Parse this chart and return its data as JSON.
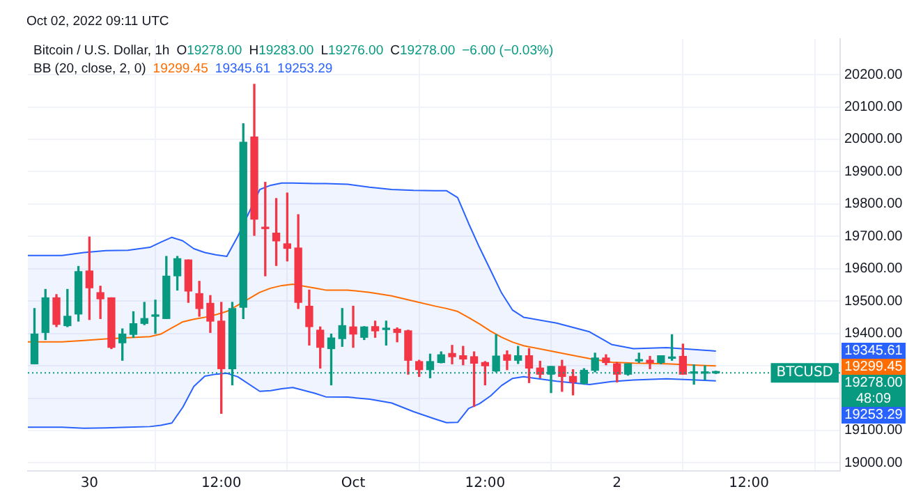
{
  "chart_data": {
    "type": "candlestick",
    "title": "Bitcoin / U.S. Dollar, 1h",
    "subtitle": "BB (20, close, 2, 0)",
    "x": [
      "2022-09-29T19:00",
      "2022-09-29T20:00",
      "2022-09-29T21:00",
      "2022-09-29T22:00",
      "2022-09-29T23:00",
      "2022-09-30T00:00",
      "2022-09-30T01:00",
      "2022-09-30T02:00",
      "2022-09-30T03:00",
      "2022-09-30T04:00",
      "2022-09-30T05:00",
      "2022-09-30T06:00",
      "2022-09-30T07:00",
      "2022-09-30T08:00",
      "2022-09-30T09:00",
      "2022-09-30T10:00",
      "2022-09-30T11:00",
      "2022-09-30T12:00",
      "2022-09-30T13:00",
      "2022-09-30T14:00",
      "2022-09-30T15:00",
      "2022-09-30T16:00",
      "2022-09-30T17:00",
      "2022-09-30T18:00",
      "2022-09-30T19:00",
      "2022-09-30T20:00",
      "2022-09-30T21:00",
      "2022-09-30T22:00",
      "2022-09-30T23:00",
      "2022-10-01T00:00",
      "2022-10-01T01:00",
      "2022-10-01T02:00",
      "2022-10-01T03:00",
      "2022-10-01T04:00",
      "2022-10-01T05:00",
      "2022-10-01T06:00",
      "2022-10-01T07:00",
      "2022-10-01T08:00",
      "2022-10-01T09:00",
      "2022-10-01T10:00",
      "2022-10-01T11:00",
      "2022-10-01T12:00",
      "2022-10-01T13:00",
      "2022-10-01T14:00",
      "2022-10-01T15:00",
      "2022-10-01T16:00",
      "2022-10-01T17:00",
      "2022-10-01T18:00",
      "2022-10-01T19:00",
      "2022-10-01T20:00",
      "2022-10-01T21:00",
      "2022-10-01T22:00",
      "2022-10-01T23:00",
      "2022-10-02T00:00",
      "2022-10-02T01:00",
      "2022-10-02T02:00",
      "2022-10-02T03:00",
      "2022-10-02T04:00",
      "2022-10-02T05:00",
      "2022-10-02T06:00",
      "2022-10-02T07:00",
      "2022-10-02T08:00",
      "2022-10-02T09:00"
    ],
    "ohlc": [
      [
        19306,
        19477,
        19306,
        19398
      ],
      [
        19403,
        19536,
        19381,
        19510
      ],
      [
        19510,
        19520,
        19421,
        19428
      ],
      [
        19424,
        19536,
        19421,
        19453
      ],
      [
        19460,
        19607,
        19438,
        19591
      ],
      [
        19593,
        19698,
        19443,
        19541
      ],
      [
        19526,
        19546,
        19446,
        19507
      ],
      [
        19510,
        19510,
        19353,
        19357
      ],
      [
        19371,
        19414,
        19317,
        19398
      ],
      [
        19397,
        19467,
        19388,
        19430
      ],
      [
        19431,
        19496,
        19427,
        19446
      ],
      [
        19453,
        19503,
        19400,
        19454
      ],
      [
        19446,
        19638,
        19446,
        19577
      ],
      [
        19578,
        19638,
        19534,
        19631
      ],
      [
        19627,
        19627,
        19496,
        19531
      ],
      [
        19523,
        19561,
        19453,
        19477
      ],
      [
        19493,
        19517,
        19403,
        19438
      ],
      [
        19438,
        19496,
        19153,
        19291
      ],
      [
        19291,
        19496,
        19241,
        19477
      ],
      [
        19481,
        20048,
        19446,
        19991
      ],
      [
        20007,
        20170,
        19703,
        19753
      ],
      [
        19728,
        19867,
        19578,
        19724
      ],
      [
        19710,
        19817,
        19610,
        19686
      ],
      [
        19677,
        19834,
        19624,
        19663
      ],
      [
        19664,
        19767,
        19477,
        19496
      ],
      [
        19484,
        19534,
        19364,
        19421
      ],
      [
        19410,
        19420,
        19293,
        19357
      ],
      [
        19353,
        19398,
        19241,
        19386
      ],
      [
        19384,
        19477,
        19360,
        19424
      ],
      [
        19420,
        19484,
        19357,
        19398
      ],
      [
        19388,
        19421,
        19381,
        19420
      ],
      [
        19421,
        19438,
        19388,
        19408
      ],
      [
        19412,
        19438,
        19364,
        19414
      ],
      [
        19413,
        19417,
        19374,
        19403
      ],
      [
        19408,
        19410,
        19274,
        19317
      ],
      [
        19313,
        19317,
        19267,
        19288
      ],
      [
        19288,
        19336,
        19263,
        19313
      ],
      [
        19310,
        19343,
        19309,
        19334
      ],
      [
        19338,
        19363,
        19306,
        19328
      ],
      [
        19331,
        19360,
        19303,
        19321
      ],
      [
        19328,
        19343,
        19174,
        19308
      ],
      [
        19310,
        19313,
        19241,
        19300
      ],
      [
        19284,
        19396,
        19281,
        19330
      ],
      [
        19334,
        19346,
        19288,
        19317
      ],
      [
        19317,
        19360,
        19307,
        19331
      ],
      [
        19331,
        19353,
        19248,
        19293
      ],
      [
        19293,
        19314,
        19263,
        19274
      ],
      [
        19274,
        19298,
        19217,
        19298
      ],
      [
        19298,
        19317,
        19221,
        19267
      ],
      [
        19267,
        19288,
        19210,
        19250
      ],
      [
        19246,
        19291,
        19243,
        19286
      ],
      [
        19286,
        19339,
        19281,
        19324
      ],
      [
        19324,
        19334,
        19303,
        19310
      ],
      [
        19306,
        19310,
        19250,
        19274
      ],
      [
        19274,
        19306,
        19271,
        19306
      ],
      [
        19315,
        19339,
        19310,
        19317
      ],
      [
        19317,
        19329,
        19291,
        19310
      ],
      [
        19310,
        19331,
        19306,
        19331
      ],
      [
        19323,
        19396,
        19317,
        19327
      ],
      [
        19329,
        19367,
        19274,
        19274
      ],
      [
        19277,
        19303,
        19243,
        19281
      ],
      [
        19277,
        19300,
        19257,
        19281
      ],
      [
        19278,
        19283,
        19276,
        19278
      ]
    ],
    "series": [
      {
        "type": "line",
        "color": "#2962ff",
        "x": [
          "2022-09-29T18:24",
          "2022-09-29T21:30",
          "2022-09-29T23:30",
          "2022-09-30T01:30",
          "2022-09-30T03:30",
          "2022-09-30T05:30",
          "2022-09-30T06:30",
          "2022-09-30T07:30",
          "2022-09-30T08:30",
          "2022-09-30T09:30",
          "2022-09-30T10:30",
          "2022-09-30T11:30",
          "2022-09-30T12:30",
          "2022-09-30T13:30",
          "2022-09-30T15:30",
          "2022-09-30T16:30",
          "2022-09-30T17:30",
          "2022-09-30T18:30",
          "2022-09-30T20:30",
          "2022-09-30T21:30",
          "2022-09-30T23:30",
          "2022-10-01T01:30",
          "2022-10-01T03:30",
          "2022-10-01T05:30",
          "2022-10-01T07:30",
          "2022-10-01T08:30",
          "2022-10-01T09:30",
          "2022-10-01T10:30",
          "2022-10-01T11:30",
          "2022-10-01T12:30",
          "2022-10-01T13:30",
          "2022-10-01T14:30",
          "2022-10-01T15:30",
          "2022-10-01T18:30",
          "2022-10-01T21:30",
          "2022-10-01T23:30",
          "2022-10-02T01:30",
          "2022-10-02T04:30",
          "2022-10-02T09:00"
        ],
        "values": [
          19641,
          19641,
          19650,
          19656,
          19657,
          19666,
          19682,
          19697,
          19686,
          19662,
          19650,
          19643,
          19638,
          19700,
          19845,
          19858,
          19865,
          19865,
          19863,
          19863,
          19861,
          19852,
          19845,
          19842,
          19841,
          19841,
          19820,
          19740,
          19665,
          19595,
          19525,
          19472,
          19450,
          19432,
          19405,
          19366,
          19353,
          19356,
          19345.61
        ]
      },
      {
        "type": "line",
        "color": "#ff6d00",
        "x": [
          "2022-09-29T18:24",
          "2022-09-29T21:30",
          "2022-09-29T23:30",
          "2022-09-30T01:30",
          "2022-09-30T03:30",
          "2022-09-30T05:30",
          "2022-09-30T06:30",
          "2022-09-30T07:30",
          "2022-09-30T08:30",
          "2022-09-30T09:30",
          "2022-09-30T10:30",
          "2022-09-30T11:30",
          "2022-09-30T12:30",
          "2022-09-30T13:30",
          "2022-09-30T15:30",
          "2022-09-30T16:30",
          "2022-09-30T17:30",
          "2022-09-30T18:30",
          "2022-09-30T20:30",
          "2022-09-30T21:30",
          "2022-09-30T23:30",
          "2022-10-01T01:30",
          "2022-10-01T03:30",
          "2022-10-01T05:30",
          "2022-10-01T07:30",
          "2022-10-01T08:30",
          "2022-10-01T09:30",
          "2022-10-01T10:30",
          "2022-10-01T11:30",
          "2022-10-01T12:30",
          "2022-10-01T13:30",
          "2022-10-01T14:30",
          "2022-10-01T15:30",
          "2022-10-01T18:30",
          "2022-10-01T21:30",
          "2022-10-01T23:30",
          "2022-10-02T01:30",
          "2022-10-02T04:30",
          "2022-10-02T09:00"
        ],
        "values": [
          19374,
          19374,
          19378,
          19383,
          19387,
          19390,
          19398,
          19417,
          19436,
          19444,
          19450,
          19458,
          19468,
          19487,
          19527,
          19540,
          19548,
          19552,
          19540,
          19534,
          19534,
          19527,
          19516,
          19500,
          19484,
          19477,
          19468,
          19449,
          19429,
          19407,
          19388,
          19373,
          19362,
          19342,
          19322,
          19311,
          19308,
          19306,
          19299.45
        ],
        "upper": [
          19641,
          19641,
          19650,
          19656,
          19657,
          19666,
          19682,
          19697,
          19686,
          19662,
          19650,
          19643,
          19638,
          19700,
          19845,
          19858,
          19865,
          19865,
          19863,
          19863,
          19861,
          19852,
          19845,
          19842,
          19841,
          19841,
          19820,
          19740,
          19665,
          19595,
          19525,
          19472,
          19450,
          19432,
          19405,
          19366,
          19353,
          19356,
          19345.61
        ],
        "lower": [
          19110,
          19110,
          19107,
          19108,
          19110,
          19112,
          19116,
          19123,
          19172,
          19236,
          19268,
          19274,
          19277,
          19266,
          19221,
          19223,
          19229,
          19233,
          19215,
          19204,
          19203,
          19197,
          19185,
          19158,
          19135,
          19124,
          19125,
          19168,
          19183,
          19207,
          19239,
          19261,
          19266,
          19252,
          19242,
          19251,
          19256,
          19260,
          19253.29
        ]
      },
      {
        "type": "line",
        "color": "#2962ff",
        "x": [
          "2022-09-29T18:24",
          "2022-09-29T21:30",
          "2022-09-29T23:30",
          "2022-09-30T01:30",
          "2022-09-30T03:30",
          "2022-09-30T05:30",
          "2022-09-30T06:30",
          "2022-09-30T07:30",
          "2022-09-30T08:30",
          "2022-09-30T09:30",
          "2022-09-30T10:30",
          "2022-09-30T11:30",
          "2022-09-30T12:30",
          "2022-09-30T13:30",
          "2022-09-30T15:30",
          "2022-09-30T16:30",
          "2022-09-30T17:30",
          "2022-09-30T18:30",
          "2022-09-30T20:30",
          "2022-09-30T21:30",
          "2022-09-30T23:30",
          "2022-10-01T01:30",
          "2022-10-01T03:30",
          "2022-10-01T05:30",
          "2022-10-01T07:30",
          "2022-10-01T08:30",
          "2022-10-01T09:30",
          "2022-10-01T10:30",
          "2022-10-01T11:30",
          "2022-10-01T12:30",
          "2022-10-01T13:30",
          "2022-10-01T14:30",
          "2022-10-01T15:30",
          "2022-10-01T18:30",
          "2022-10-01T21:30",
          "2022-10-01T23:30",
          "2022-10-02T01:30",
          "2022-10-02T04:30",
          "2022-10-02T09:00"
        ],
        "values": [
          19110,
          19110,
          19107,
          19108,
          19110,
          19112,
          19116,
          19123,
          19172,
          19236,
          19268,
          19274,
          19277,
          19266,
          19221,
          19223,
          19229,
          19233,
          19215,
          19204,
          19203,
          19197,
          19185,
          19158,
          19135,
          19124,
          19125,
          19168,
          19183,
          19207,
          19239,
          19261,
          19266,
          19252,
          19242,
          19251,
          19256,
          19260,
          19253.29
        ]
      }
    ],
    "xlim": [
      "2022-09-29T18:24",
      "2022-10-02T20:18"
    ],
    "xticks": [
      {
        "value": "2022-09-30T00:00",
        "label": "30"
      },
      {
        "value": "2022-09-30T12:00",
        "label": "12:00"
      },
      {
        "value": "2022-10-01T00:00",
        "label": "Oct"
      },
      {
        "value": "2022-10-01T12:00",
        "label": "12:00"
      },
      {
        "value": "2022-10-02T00:00",
        "label": "2"
      },
      {
        "value": "2022-10-02T12:00",
        "label": "12:00"
      }
    ],
    "ylim": [
      18975,
      20310
    ],
    "yticks": [
      {
        "value": 19000,
        "label": "19000.00"
      },
      {
        "value": 19100,
        "label": "19100.00"
      },
      {
        "value": 19200,
        "label": null
      },
      {
        "value": 19300,
        "label": null
      },
      {
        "value": 19400,
        "label": "19400.00"
      },
      {
        "value": 19500,
        "label": "19500.00"
      },
      {
        "value": 19600,
        "label": "19600.00"
      },
      {
        "value": 19700,
        "label": "19700.00"
      },
      {
        "value": 19800,
        "label": "19800.00"
      },
      {
        "value": 19900,
        "label": "19900.00"
      },
      {
        "value": 20000,
        "label": "20000.00"
      },
      {
        "value": 20100,
        "label": "20100.00"
      },
      {
        "value": 20200,
        "label": "20200.00"
      }
    ],
    "grid": true,
    "ref_lines": [
      {
        "axis": "y",
        "value": 19278,
        "label": "BTCUSD",
        "color": "#089981",
        "line_style": "dotted"
      }
    ],
    "annotations": [
      "Oct 02, 2022 09:11 UTC",
      "O19278.00",
      "H19283.00",
      "L19276.00",
      "C19278.00",
      "−6.00 (−0.03%)",
      "19299.45",
      "19345.61",
      "19253.29",
      "19345.61",
      "19299.45",
      "19278.00",
      "48:09",
      "19253.29"
    ]
  }
}
